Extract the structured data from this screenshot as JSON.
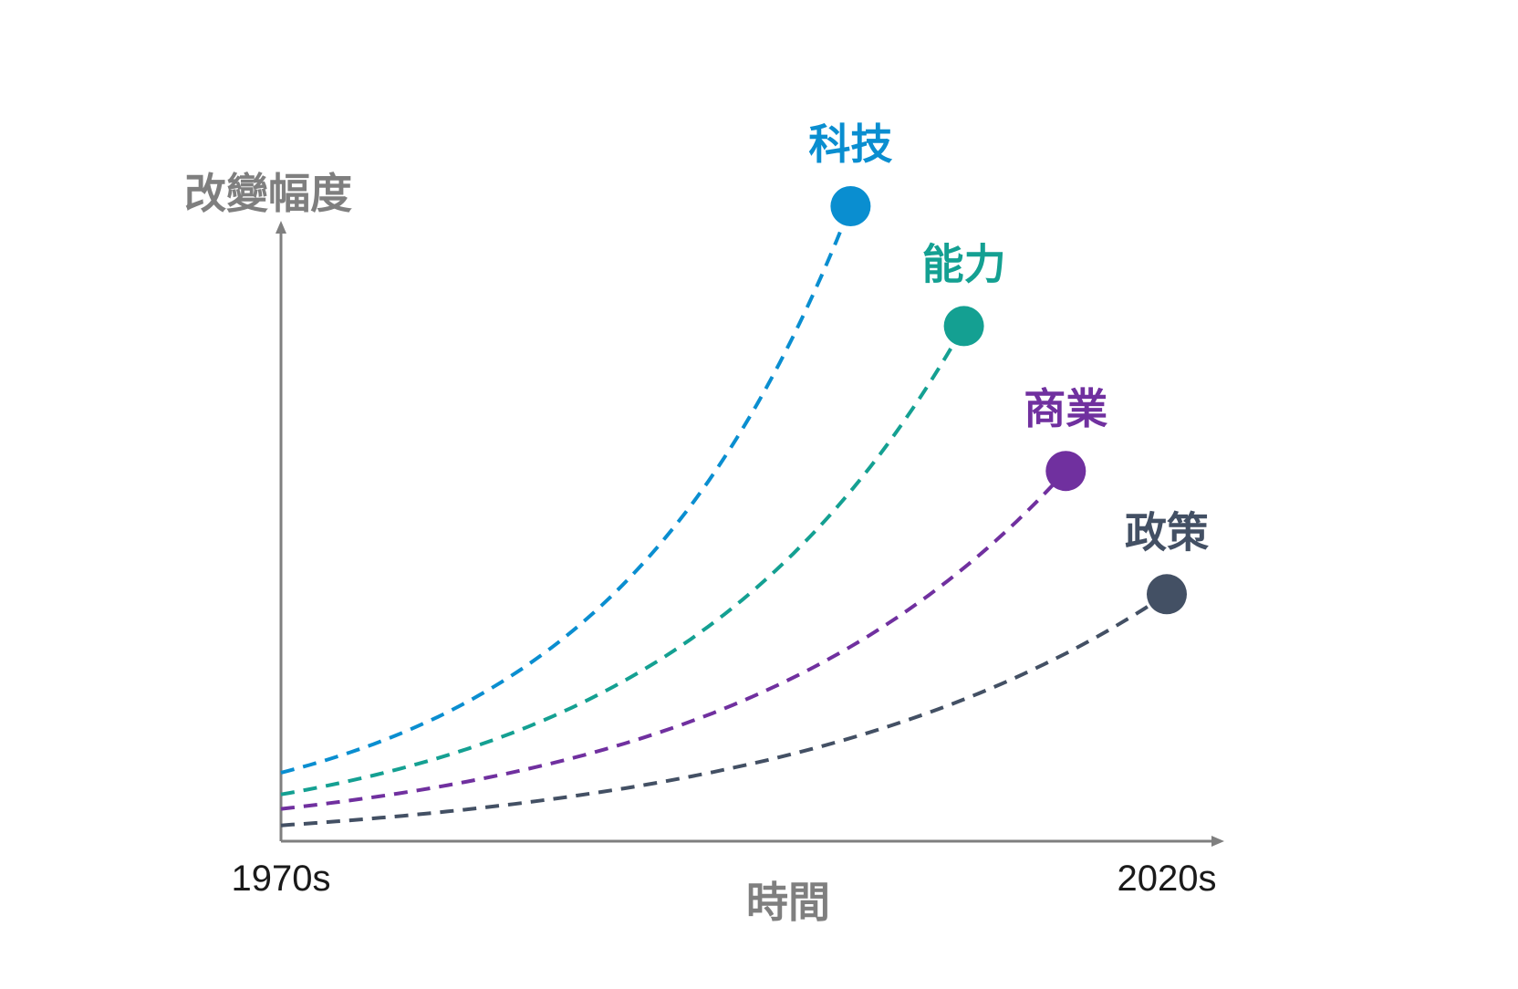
{
  "chart_data": {
    "type": "line",
    "ylabel": "改變幅度",
    "xlabel": "時間",
    "x_ticks": [
      "1970s",
      "2020s"
    ],
    "x_range": [
      "1970s",
      "2020s"
    ],
    "curve_shape": "exponential",
    "grid": false,
    "legend": "labels at series end points",
    "series": [
      {
        "name": "科技",
        "color": "#0a8ed0",
        "start": 0.104,
        "end_x": 0.643,
        "end_y": 0.964
      },
      {
        "name": "能力",
        "color": "#14a092",
        "start": 0.071,
        "end_x": 0.771,
        "end_y": 0.782
      },
      {
        "name": "商業",
        "color": "#70309f",
        "start": 0.049,
        "end_x": 0.886,
        "end_y": 0.562
      },
      {
        "name": "政策",
        "color": "#435064",
        "start": 0.024,
        "end_x": 1.0,
        "end_y": 0.375
      }
    ]
  }
}
